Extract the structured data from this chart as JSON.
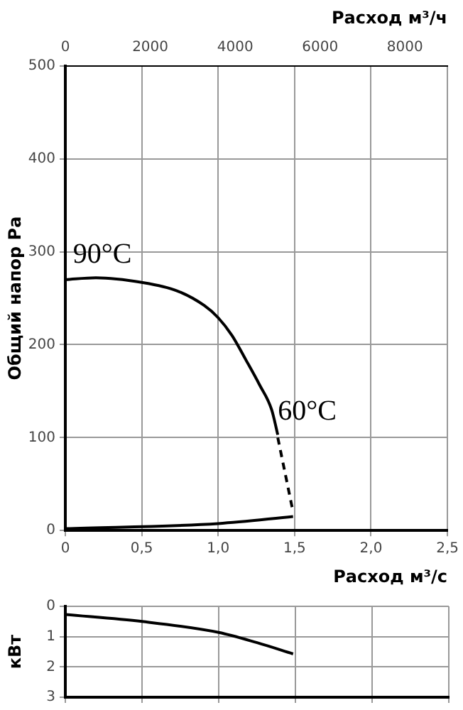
{
  "chart_data": [
    {
      "type": "line",
      "xlabel": "Расход м³/с",
      "x2label": "Расход м³/ч",
      "ylabel": "Общий напор Ра",
      "xlim": [
        0,
        2.5
      ],
      "xticks": [
        0,
        {
          "value": 0.5,
          "label": "0,5"
        },
        {
          "value": 1,
          "label": "1,0"
        },
        {
          "value": 1.5,
          "label": "1,5"
        },
        {
          "value": 2,
          "label": "2,0"
        },
        {
          "value": 2.5,
          "label": "2,5"
        }
      ],
      "x2lim": [
        0,
        9000
      ],
      "x2ticks": [
        0,
        2000,
        4000,
        6000,
        8000
      ],
      "ylim": [
        0,
        500
      ],
      "yticks": [
        0,
        100,
        200,
        300,
        400,
        500
      ],
      "grid": true,
      "marker": "none",
      "series": [
        {
          "color": "#000000",
          "x": [
            0,
            0.2,
            0.5,
            0.73,
            0.91,
            1.0,
            1.09,
            1.18,
            1.27,
            1.35,
            1.39
          ],
          "values": [
            270,
            272,
            267,
            258,
            242,
            229,
            210,
            184,
            157,
            130,
            103
          ]
        },
        {
          "color": "#000000",
          "line_style": "dashed",
          "x": [
            1.39,
            1.49
          ],
          "values": [
            100,
            20
          ]
        },
        {
          "color": "#000000",
          "x": [
            0,
            1.0,
            1.49
          ],
          "values": [
            2,
            7.5,
            15
          ]
        }
      ],
      "annotations": [
        {
          "text": "90°C",
          "x": 0.05,
          "y": 272
        },
        {
          "text": "60°C",
          "x": 1.39,
          "y": 103
        }
      ]
    },
    {
      "type": "line",
      "ylabel": "кВт",
      "xlim": [
        0,
        2.5
      ],
      "xticks": [
        0,
        0.5,
        1,
        1.5,
        2,
        2.5
      ],
      "ylim": [
        3,
        0
      ],
      "yticks": [
        0,
        1,
        2,
        3
      ],
      "grid": true,
      "marker": "none",
      "tick_labels": "y",
      "series": [
        {
          "color": "#000000",
          "x": [
            0,
            0.5,
            1.0,
            1.25,
            1.485
          ],
          "values": [
            0.27,
            0.5,
            0.86,
            1.2,
            1.57
          ]
        }
      ]
    }
  ]
}
